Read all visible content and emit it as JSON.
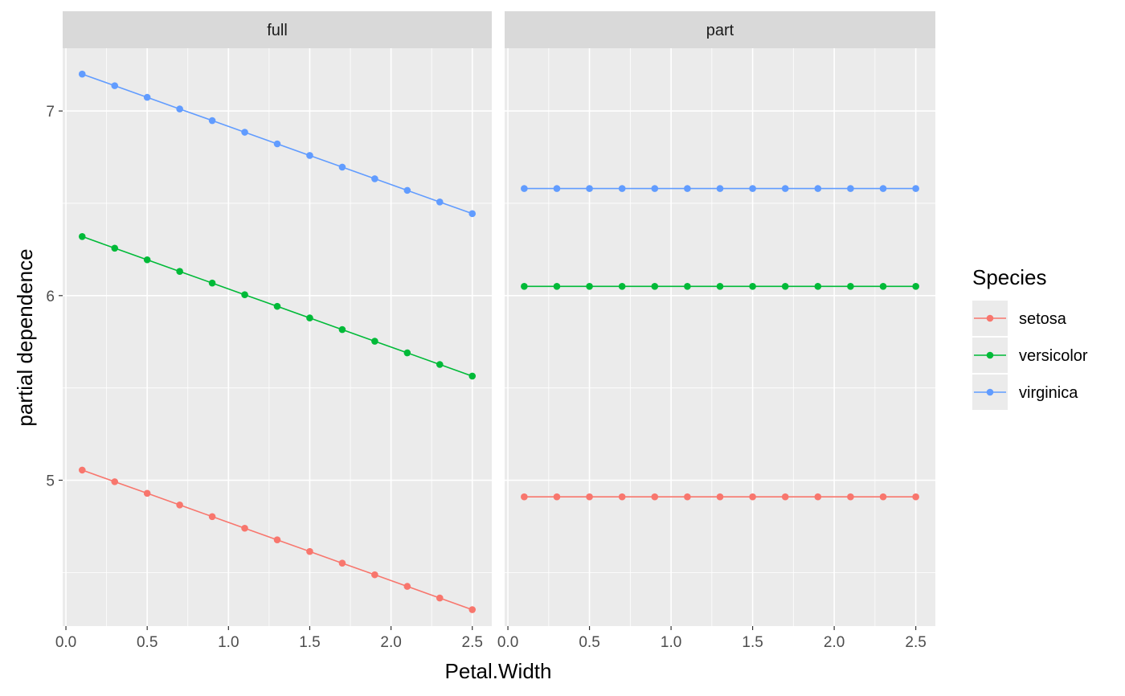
{
  "chart_data": {
    "type": "line",
    "xlabel": "Petal.Width",
    "ylabel": "partial dependence",
    "xlim": [
      -0.02,
      2.62
    ],
    "ylim": [
      4.21,
      7.34
    ],
    "x_ticks": [
      0.0,
      0.5,
      1.0,
      1.5,
      2.0,
      2.5
    ],
    "x_tick_labels": [
      "0.0",
      "0.5",
      "1.0",
      "1.5",
      "2.0",
      "2.5"
    ],
    "y_ticks": [
      5,
      6,
      7
    ],
    "y_tick_labels": [
      "5",
      "6",
      "7"
    ],
    "grid": true,
    "legend": {
      "title": "Species",
      "position": "right"
    },
    "x": [
      0.1,
      0.3,
      0.5,
      0.7,
      0.9,
      1.1,
      1.3,
      1.5,
      1.7,
      1.9,
      2.1,
      2.3,
      2.5
    ],
    "panels": [
      {
        "label": "full",
        "series": [
          {
            "name": "setosa",
            "color": "#F8766D",
            "values": [
              5.055,
              4.992,
              4.929,
              4.866,
              4.803,
              4.74,
              4.677,
              4.614,
              4.551,
              4.488,
              4.425,
              4.362,
              4.299
            ]
          },
          {
            "name": "versicolor",
            "color": "#00BA38",
            "values": [
              6.32,
              6.257,
              6.194,
              6.131,
              6.068,
              6.005,
              5.942,
              5.879,
              5.816,
              5.753,
              5.69,
              5.627,
              5.564
            ]
          },
          {
            "name": "virginica",
            "color": "#619CFF",
            "values": [
              7.2,
              7.137,
              7.074,
              7.011,
              6.948,
              6.885,
              6.822,
              6.759,
              6.696,
              6.633,
              6.57,
              6.507,
              6.444
            ]
          }
        ]
      },
      {
        "label": "part",
        "series": [
          {
            "name": "setosa",
            "color": "#F8766D",
            "values": [
              4.91,
              4.91,
              4.91,
              4.91,
              4.91,
              4.91,
              4.91,
              4.91,
              4.91,
              4.91,
              4.91,
              4.91,
              4.91
            ]
          },
          {
            "name": "versicolor",
            "color": "#00BA38",
            "values": [
              6.05,
              6.05,
              6.05,
              6.05,
              6.05,
              6.05,
              6.05,
              6.05,
              6.05,
              6.05,
              6.05,
              6.05,
              6.05
            ]
          },
          {
            "name": "virginica",
            "color": "#619CFF",
            "values": [
              6.58,
              6.58,
              6.58,
              6.58,
              6.58,
              6.58,
              6.58,
              6.58,
              6.58,
              6.58,
              6.58,
              6.58,
              6.58
            ]
          }
        ]
      }
    ]
  }
}
